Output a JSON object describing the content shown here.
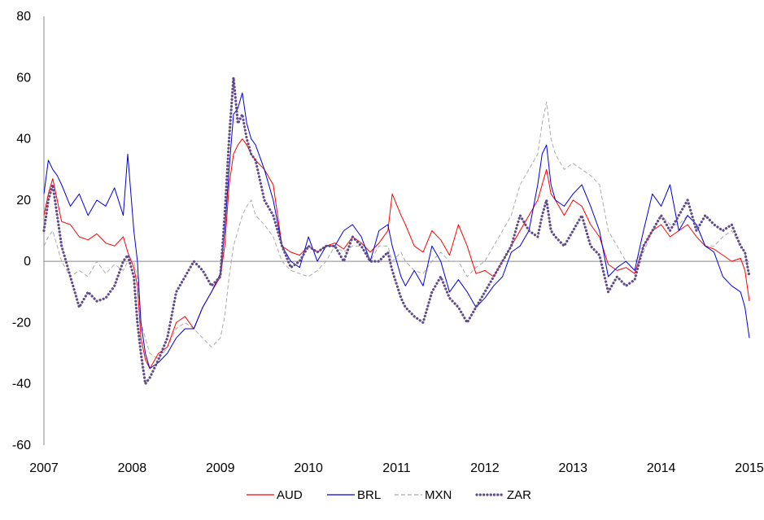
{
  "chart_data": {
    "type": "line",
    "title": "",
    "xlabel": "",
    "ylabel": "",
    "xlim": [
      2007,
      2015
    ],
    "ylim": [
      -60,
      80
    ],
    "xticks": [
      2007,
      2008,
      2009,
      2010,
      2011,
      2012,
      2013,
      2014,
      2015
    ],
    "yticks": [
      -60,
      -40,
      -20,
      0,
      20,
      40,
      60,
      80
    ],
    "grid": false,
    "zero_line": true,
    "legend_position": "bottom",
    "series": [
      {
        "name": "AUD",
        "color": "#ff0000",
        "style": "solid",
        "x": [
          2007.0,
          2007.05,
          2007.1,
          2007.15,
          2007.2,
          2007.3,
          2007.4,
          2007.5,
          2007.6,
          2007.7,
          2007.8,
          2007.9,
          2007.95,
          2008.02,
          2008.06,
          2008.1,
          2008.15,
          2008.2,
          2008.3,
          2008.4,
          2008.5,
          2008.6,
          2008.7,
          2008.8,
          2008.9,
          2009.0,
          2009.05,
          2009.1,
          2009.15,
          2009.2,
          2009.25,
          2009.3,
          2009.35,
          2009.4,
          2009.5,
          2009.6,
          2009.7,
          2009.8,
          2009.9,
          2010.0,
          2010.1,
          2010.2,
          2010.3,
          2010.4,
          2010.5,
          2010.6,
          2010.7,
          2010.8,
          2010.9,
          2010.95,
          2011.05,
          2011.1,
          2011.2,
          2011.3,
          2011.4,
          2011.5,
          2011.6,
          2011.7,
          2011.8,
          2011.9,
          2012.0,
          2012.1,
          2012.2,
          2012.3,
          2012.4,
          2012.5,
          2012.6,
          2012.65,
          2012.7,
          2012.75,
          2012.8,
          2012.9,
          2013.0,
          2013.1,
          2013.2,
          2013.3,
          2013.4,
          2013.5,
          2013.6,
          2013.7,
          2013.8,
          2013.9,
          2014.0,
          2014.1,
          2014.2,
          2014.3,
          2014.4,
          2014.5,
          2014.6,
          2014.7,
          2014.8,
          2014.9,
          2014.95,
          2015.0
        ],
        "y": [
          15,
          22,
          27,
          20,
          13,
          12,
          8,
          7,
          9,
          6,
          5,
          8,
          3,
          -2,
          -8,
          -25,
          -32,
          -35,
          -30,
          -28,
          -20,
          -18,
          -22,
          -15,
          -10,
          -5,
          5,
          25,
          35,
          38,
          40,
          38,
          35,
          33,
          30,
          25,
          5,
          3,
          2,
          5,
          3,
          5,
          6,
          4,
          8,
          6,
          3,
          6,
          10,
          22,
          15,
          12,
          5,
          3,
          10,
          7,
          2,
          12,
          5,
          -4,
          -3,
          -5,
          0,
          5,
          10,
          15,
          20,
          25,
          30,
          22,
          20,
          15,
          20,
          18,
          12,
          8,
          -1,
          -3,
          -2,
          -4,
          5,
          10,
          12,
          8,
          10,
          12,
          8,
          5,
          4,
          2,
          0,
          1,
          -3,
          -13
        ]
      },
      {
        "name": "BRL",
        "color": "#0000dd",
        "style": "solid",
        "x": [
          2007.0,
          2007.05,
          2007.1,
          2007.15,
          2007.2,
          2007.3,
          2007.4,
          2007.5,
          2007.6,
          2007.7,
          2007.8,
          2007.9,
          2007.95,
          2008.02,
          2008.06,
          2008.1,
          2008.15,
          2008.2,
          2008.3,
          2008.4,
          2008.5,
          2008.6,
          2008.7,
          2008.8,
          2008.9,
          2009.0,
          2009.05,
          2009.1,
          2009.15,
          2009.2,
          2009.25,
          2009.3,
          2009.35,
          2009.4,
          2009.5,
          2009.6,
          2009.7,
          2009.8,
          2009.9,
          2010.0,
          2010.1,
          2010.2,
          2010.3,
          2010.4,
          2010.5,
          2010.6,
          2010.7,
          2010.8,
          2010.9,
          2010.95,
          2011.05,
          2011.1,
          2011.2,
          2011.3,
          2011.4,
          2011.5,
          2011.6,
          2011.7,
          2011.8,
          2011.9,
          2012.0,
          2012.1,
          2012.2,
          2012.3,
          2012.4,
          2012.5,
          2012.6,
          2012.65,
          2012.7,
          2012.75,
          2012.8,
          2012.9,
          2013.0,
          2013.1,
          2013.2,
          2013.3,
          2013.4,
          2013.5,
          2013.6,
          2013.7,
          2013.8,
          2013.9,
          2014.0,
          2014.1,
          2014.2,
          2014.3,
          2014.4,
          2014.5,
          2014.6,
          2014.7,
          2014.8,
          2014.9,
          2014.95,
          2015.0
        ],
        "y": [
          22,
          33,
          30,
          28,
          25,
          18,
          22,
          15,
          20,
          18,
          24,
          15,
          35,
          10,
          0,
          -20,
          -30,
          -35,
          -33,
          -30,
          -25,
          -22,
          -22,
          -15,
          -10,
          -4,
          10,
          30,
          48,
          50,
          55,
          45,
          40,
          38,
          30,
          20,
          5,
          0,
          -2,
          8,
          0,
          5,
          5,
          10,
          12,
          8,
          0,
          10,
          12,
          5,
          -5,
          -8,
          -3,
          -8,
          5,
          0,
          -10,
          -6,
          -10,
          -15,
          -12,
          -8,
          -5,
          3,
          5,
          10,
          25,
          35,
          38,
          25,
          20,
          18,
          22,
          25,
          18,
          10,
          -5,
          -2,
          0,
          -3,
          10,
          22,
          18,
          25,
          10,
          15,
          12,
          5,
          3,
          -5,
          -8,
          -10,
          -15,
          -25
        ]
      },
      {
        "name": "MXN",
        "color": "#aaaaaa",
        "style": "dashed",
        "x": [
          2007.0,
          2007.05,
          2007.1,
          2007.15,
          2007.2,
          2007.3,
          2007.4,
          2007.5,
          2007.6,
          2007.7,
          2007.8,
          2007.9,
          2007.95,
          2008.02,
          2008.06,
          2008.1,
          2008.15,
          2008.2,
          2008.3,
          2008.4,
          2008.5,
          2008.6,
          2008.7,
          2008.8,
          2008.9,
          2009.0,
          2009.05,
          2009.1,
          2009.15,
          2009.2,
          2009.25,
          2009.3,
          2009.35,
          2009.4,
          2009.5,
          2009.6,
          2009.7,
          2009.8,
          2009.9,
          2010.0,
          2010.1,
          2010.2,
          2010.3,
          2010.4,
          2010.5,
          2010.6,
          2010.7,
          2010.8,
          2010.9,
          2010.95,
          2011.05,
          2011.1,
          2011.2,
          2011.3,
          2011.4,
          2011.5,
          2011.6,
          2011.7,
          2011.8,
          2011.9,
          2012.0,
          2012.1,
          2012.2,
          2012.3,
          2012.4,
          2012.5,
          2012.6,
          2012.65,
          2012.7,
          2012.75,
          2012.8,
          2012.9,
          2013.0,
          2013.1,
          2013.2,
          2013.3,
          2013.4,
          2013.5,
          2013.6,
          2013.7,
          2013.8,
          2013.9,
          2014.0,
          2014.1,
          2014.2,
          2014.3,
          2014.4,
          2014.5,
          2014.6,
          2014.7,
          2014.8,
          2014.9,
          2014.95,
          2015.0
        ],
        "y": [
          5,
          8,
          10,
          5,
          0,
          -5,
          -3,
          -5,
          0,
          -4,
          -1,
          -3,
          0,
          0,
          -5,
          -20,
          -25,
          -30,
          -32,
          -28,
          -22,
          -20,
          -22,
          -25,
          -28,
          -25,
          -18,
          -5,
          5,
          10,
          15,
          18,
          20,
          15,
          12,
          8,
          0,
          -3,
          -4,
          -5,
          -3,
          0,
          5,
          3,
          5,
          5,
          0,
          5,
          5,
          0,
          3,
          0,
          -3,
          -4,
          0,
          3,
          0,
          0,
          -5,
          -2,
          0,
          5,
          10,
          15,
          25,
          30,
          35,
          45,
          52,
          40,
          35,
          30,
          32,
          30,
          28,
          25,
          10,
          5,
          0,
          0,
          3,
          10,
          15,
          12,
          12,
          15,
          12,
          5,
          5,
          8,
          10,
          5,
          3,
          -5
        ]
      },
      {
        "name": "ZAR",
        "color": "#5f4b8b",
        "style": "dotted",
        "x": [
          2007.0,
          2007.05,
          2007.1,
          2007.15,
          2007.2,
          2007.3,
          2007.4,
          2007.5,
          2007.6,
          2007.7,
          2007.8,
          2007.9,
          2007.95,
          2008.02,
          2008.06,
          2008.1,
          2008.15,
          2008.2,
          2008.3,
          2008.4,
          2008.5,
          2008.6,
          2008.7,
          2008.8,
          2008.9,
          2009.0,
          2009.05,
          2009.1,
          2009.15,
          2009.2,
          2009.25,
          2009.3,
          2009.35,
          2009.4,
          2009.5,
          2009.6,
          2009.7,
          2009.8,
          2009.9,
          2010.0,
          2010.1,
          2010.2,
          2010.3,
          2010.4,
          2010.5,
          2010.6,
          2010.7,
          2010.8,
          2010.9,
          2010.95,
          2011.05,
          2011.1,
          2011.2,
          2011.3,
          2011.4,
          2011.5,
          2011.6,
          2011.7,
          2011.8,
          2011.9,
          2012.0,
          2012.1,
          2012.2,
          2012.3,
          2012.4,
          2012.5,
          2012.6,
          2012.65,
          2012.7,
          2012.75,
          2012.8,
          2012.9,
          2013.0,
          2013.1,
          2013.2,
          2013.3,
          2013.4,
          2013.5,
          2013.6,
          2013.7,
          2013.8,
          2013.9,
          2014.0,
          2014.1,
          2014.2,
          2014.3,
          2014.4,
          2014.5,
          2014.6,
          2014.7,
          2014.8,
          2014.9,
          2014.95,
          2015.0
        ],
        "y": [
          10,
          20,
          25,
          15,
          5,
          -5,
          -15,
          -10,
          -13,
          -12,
          -8,
          0,
          2,
          -5,
          -20,
          -30,
          -40,
          -38,
          -32,
          -25,
          -10,
          -5,
          0,
          -3,
          -8,
          -5,
          15,
          40,
          60,
          45,
          48,
          40,
          35,
          33,
          20,
          15,
          5,
          -2,
          0,
          5,
          3,
          5,
          5,
          0,
          8,
          5,
          0,
          0,
          3,
          -3,
          -12,
          -15,
          -18,
          -20,
          -10,
          -5,
          -12,
          -15,
          -20,
          -15,
          -10,
          -5,
          0,
          5,
          15,
          10,
          8,
          15,
          20,
          10,
          8,
          5,
          10,
          15,
          5,
          2,
          -10,
          -5,
          -8,
          -6,
          5,
          10,
          15,
          10,
          15,
          20,
          10,
          15,
          12,
          10,
          12,
          5,
          3,
          -5
        ]
      }
    ]
  }
}
